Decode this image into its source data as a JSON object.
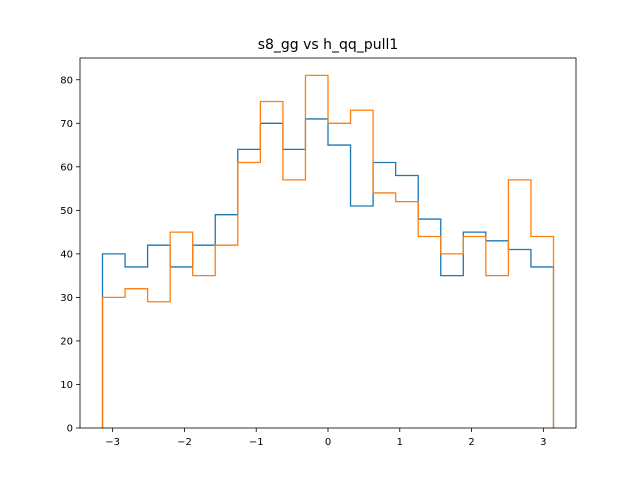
{
  "chart_data": {
    "type": "histogram",
    "title": "s8_gg vs h_qq_pull1",
    "xlabel": "",
    "ylabel": "",
    "xlim": [
      -3.455,
      3.455
    ],
    "ylim": [
      0,
      85
    ],
    "x_ticks": [
      -3,
      -2,
      -1,
      0,
      1,
      2,
      3
    ],
    "x_tick_labels": [
      "−3",
      "−2",
      "−1",
      "0",
      "1",
      "2",
      "3"
    ],
    "y_ticks": [
      0,
      10,
      20,
      30,
      40,
      50,
      60,
      70,
      80
    ],
    "y_tick_labels": [
      "0",
      "10",
      "20",
      "30",
      "40",
      "50",
      "60",
      "70",
      "80"
    ],
    "grid": false,
    "legend": "none",
    "bin_edges": [
      -3.14159,
      -2.82743,
      -2.51327,
      -2.19911,
      -1.88496,
      -1.5708,
      -1.25664,
      -0.94248,
      -0.62832,
      -0.31416,
      0,
      0.31416,
      0.62832,
      0.94248,
      1.25664,
      1.5708,
      1.88496,
      2.19911,
      2.51327,
      2.82743,
      3.14159
    ],
    "series": [
      {
        "color": "#1f77b4",
        "values": [
          40,
          37,
          42,
          37,
          42,
          49,
          64,
          70,
          64,
          71,
          65,
          51,
          61,
          58,
          48,
          35,
          45,
          43,
          41,
          37
        ]
      },
      {
        "color": "#ff7f0e",
        "values": [
          30,
          32,
          29,
          45,
          35,
          42,
          61,
          75,
          57,
          81,
          70,
          73,
          54,
          52,
          44,
          40,
          44,
          35,
          57,
          44
        ]
      }
    ]
  }
}
